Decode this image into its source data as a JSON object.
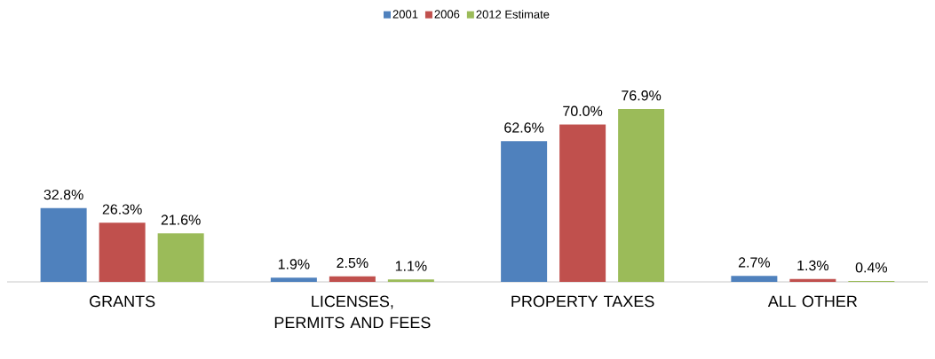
{
  "chart_data": {
    "type": "bar",
    "categories": [
      "GRANTS",
      "LICENSES, PERMITS AND FEES",
      "PROPERTY TAXES",
      "ALL OTHER"
    ],
    "series": [
      {
        "name": "2001",
        "color": "#4f81bd",
        "values": [
          32.8,
          1.9,
          62.6,
          2.7
        ],
        "value_labels": [
          "32.8%",
          "1.9%",
          "62.6%",
          "2.7%"
        ]
      },
      {
        "name": "2006",
        "color": "#c0504d",
        "values": [
          26.3,
          2.5,
          70.0,
          1.3
        ],
        "value_labels": [
          "26.3%",
          "2.5%",
          "70.0%",
          "1.3%"
        ]
      },
      {
        "name": "2012 Estimate",
        "color": "#9bbb59",
        "values": [
          21.6,
          1.1,
          76.9,
          0.4
        ],
        "value_labels": [
          "21.6%",
          "1.1%",
          "76.9%",
          "0.4%"
        ]
      }
    ],
    "legend": "top",
    "tick_labels": "x"
  }
}
